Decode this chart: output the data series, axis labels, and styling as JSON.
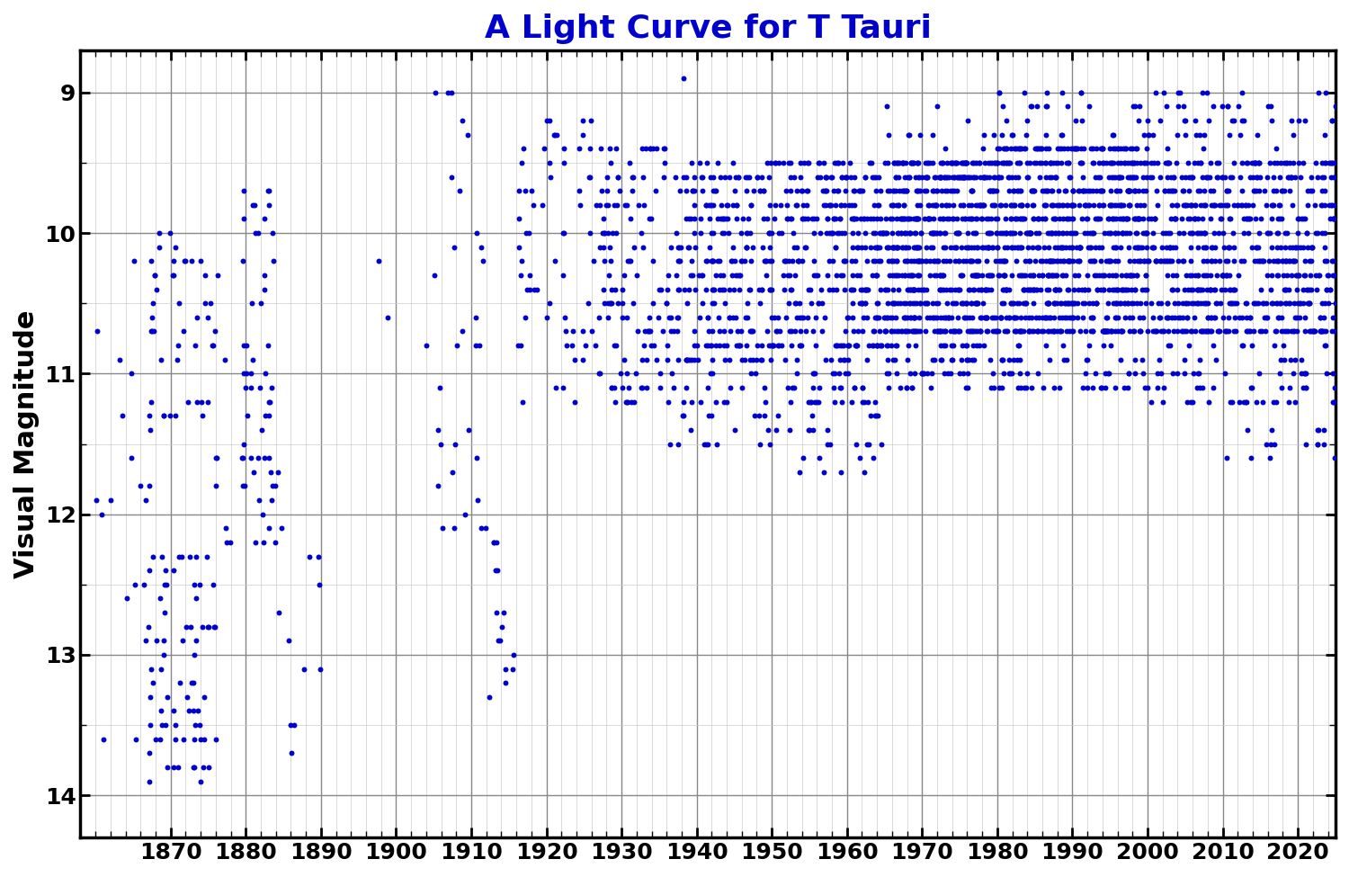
{
  "title": "A Light Curve for T Tauri",
  "title_color": "#0000CC",
  "title_fontsize": 26,
  "xlabel": "",
  "ylabel": "Visual Magnitude",
  "ylabel_fontsize": 22,
  "xlim": [
    1858,
    2025
  ],
  "ylim": [
    14.3,
    8.7
  ],
  "xtick_major": [
    1870,
    1880,
    1890,
    1900,
    1910,
    1920,
    1930,
    1940,
    1950,
    1960,
    1970,
    1980,
    1990,
    2000,
    2010,
    2020
  ],
  "ytick_major": [
    9,
    10,
    11,
    12,
    13,
    14
  ],
  "dot_color": "#0000CD",
  "dot_size": 18,
  "background_color": "#ffffff",
  "grid_major_color": "#888888",
  "grid_minor_color": "#cccccc",
  "tick_fontsize": 18
}
